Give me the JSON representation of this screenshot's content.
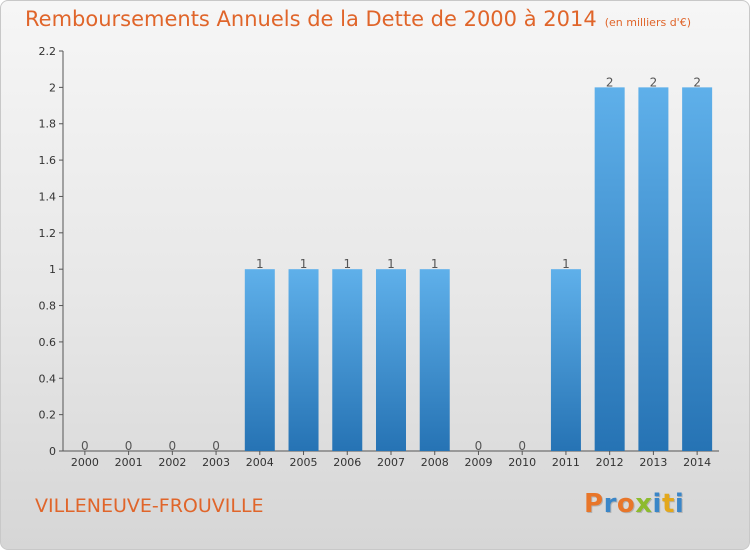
{
  "title": "Remboursements Annuels de la Dette de 2000 à 2014",
  "unit_note": "(en milliers d'€)",
  "commune": "VILLENEUVE-FROUVILLE",
  "logo": {
    "text": "Proxiti",
    "letter_colors": [
      "#e8762a",
      "#3a86c8",
      "#e8762a",
      "#8dbb2e",
      "#3a86c8",
      "#e3a81c",
      "#3a86c8"
    ]
  },
  "colors": {
    "accent": "#e0652a",
    "bar_top": "#5fb0ea",
    "bar_bottom": "#2673b4",
    "axis": "#555555"
  },
  "chart_data": {
    "type": "bar",
    "categories": [
      "2000",
      "2001",
      "2002",
      "2003",
      "2004",
      "2005",
      "2006",
      "2007",
      "2008",
      "2009",
      "2010",
      "2011",
      "2012",
      "2013",
      "2014"
    ],
    "values": [
      0,
      0,
      0,
      0,
      1,
      1,
      1,
      1,
      1,
      0,
      0,
      1,
      2,
      2,
      2
    ],
    "data_labels": [
      "0",
      "0",
      "0",
      "0",
      "1",
      "1",
      "1",
      "1",
      "1",
      "0",
      "0",
      "1",
      "2",
      "2",
      "2"
    ],
    "yticks": [
      0,
      0.2,
      0.4,
      0.6,
      0.8,
      1,
      1.2,
      1.4,
      1.6,
      1.8,
      2,
      2.2
    ],
    "ytick_labels": [
      "0",
      "0.2",
      "0.4",
      "0.6",
      "0.8",
      "1",
      "1.2",
      "1.4",
      "1.6",
      "1.8",
      "2",
      "2.2"
    ],
    "ylim": [
      0,
      2.2
    ],
    "grid": false,
    "legend": "none"
  }
}
